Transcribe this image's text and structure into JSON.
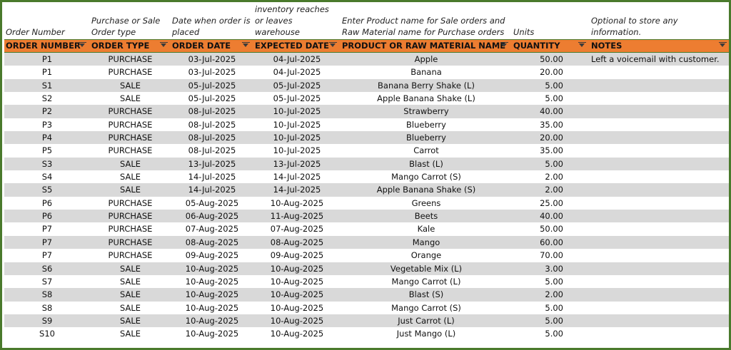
{
  "column_notes": {
    "order_number": "Order Number",
    "order_type": "Purchase or Sale Order type",
    "order_date": "Date when order is placed",
    "expected_date": "Date when inventory reaches or leaves warehouse",
    "product": "Enter Product name for Sale orders and Raw Material name for Purchase orders",
    "quantity": "Units",
    "notes": "Optional to store any information."
  },
  "headers": {
    "order_number": "ORDER NUMBER",
    "order_type": "ORDER TYPE",
    "order_date": "ORDER DATE",
    "expected_date": "EXPECTED DATE",
    "product": "PRODUCT OR RAW MATERIAL NAME",
    "quantity": "QUANTITY",
    "notes": "NOTES"
  },
  "rows": [
    {
      "order_number": "P1",
      "order_type": "PURCHASE",
      "order_date": "03-Jul-2025",
      "expected_date": "04-Jul-2025",
      "product": "Apple",
      "quantity": "50.00",
      "notes": "Left a voicemail with customer."
    },
    {
      "order_number": "P1",
      "order_type": "PURCHASE",
      "order_date": "03-Jul-2025",
      "expected_date": "04-Jul-2025",
      "product": "Banana",
      "quantity": "20.00",
      "notes": ""
    },
    {
      "order_number": "S1",
      "order_type": "SALE",
      "order_date": "05-Jul-2025",
      "expected_date": "05-Jul-2025",
      "product": "Banana Berry Shake (L)",
      "quantity": "5.00",
      "notes": ""
    },
    {
      "order_number": "S2",
      "order_type": "SALE",
      "order_date": "05-Jul-2025",
      "expected_date": "05-Jul-2025",
      "product": "Apple Banana Shake (L)",
      "quantity": "5.00",
      "notes": ""
    },
    {
      "order_number": "P2",
      "order_type": "PURCHASE",
      "order_date": "08-Jul-2025",
      "expected_date": "10-Jul-2025",
      "product": "Strawberry",
      "quantity": "40.00",
      "notes": ""
    },
    {
      "order_number": "P3",
      "order_type": "PURCHASE",
      "order_date": "08-Jul-2025",
      "expected_date": "10-Jul-2025",
      "product": "Blueberry",
      "quantity": "35.00",
      "notes": ""
    },
    {
      "order_number": "P4",
      "order_type": "PURCHASE",
      "order_date": "08-Jul-2025",
      "expected_date": "10-Jul-2025",
      "product": "Blueberry",
      "quantity": "20.00",
      "notes": ""
    },
    {
      "order_number": "P5",
      "order_type": "PURCHASE",
      "order_date": "08-Jul-2025",
      "expected_date": "10-Jul-2025",
      "product": "Carrot",
      "quantity": "35.00",
      "notes": ""
    },
    {
      "order_number": "S3",
      "order_type": "SALE",
      "order_date": "13-Jul-2025",
      "expected_date": "13-Jul-2025",
      "product": "Blast (L)",
      "quantity": "5.00",
      "notes": ""
    },
    {
      "order_number": "S4",
      "order_type": "SALE",
      "order_date": "14-Jul-2025",
      "expected_date": "14-Jul-2025",
      "product": "Mango Carrot (S)",
      "quantity": "2.00",
      "notes": ""
    },
    {
      "order_number": "S5",
      "order_type": "SALE",
      "order_date": "14-Jul-2025",
      "expected_date": "14-Jul-2025",
      "product": "Apple Banana Shake (S)",
      "quantity": "2.00",
      "notes": ""
    },
    {
      "order_number": "P6",
      "order_type": "PURCHASE",
      "order_date": "05-Aug-2025",
      "expected_date": "10-Aug-2025",
      "product": "Greens",
      "quantity": "25.00",
      "notes": ""
    },
    {
      "order_number": "P6",
      "order_type": "PURCHASE",
      "order_date": "06-Aug-2025",
      "expected_date": "11-Aug-2025",
      "product": "Beets",
      "quantity": "40.00",
      "notes": ""
    },
    {
      "order_number": "P7",
      "order_type": "PURCHASE",
      "order_date": "07-Aug-2025",
      "expected_date": "07-Aug-2025",
      "product": "Kale",
      "quantity": "50.00",
      "notes": ""
    },
    {
      "order_number": "P7",
      "order_type": "PURCHASE",
      "order_date": "08-Aug-2025",
      "expected_date": "08-Aug-2025",
      "product": "Mango",
      "quantity": "60.00",
      "notes": ""
    },
    {
      "order_number": "P7",
      "order_type": "PURCHASE",
      "order_date": "09-Aug-2025",
      "expected_date": "09-Aug-2025",
      "product": "Orange",
      "quantity": "70.00",
      "notes": ""
    },
    {
      "order_number": "S6",
      "order_type": "SALE",
      "order_date": "10-Aug-2025",
      "expected_date": "10-Aug-2025",
      "product": "Vegetable Mix (L)",
      "quantity": "3.00",
      "notes": ""
    },
    {
      "order_number": "S7",
      "order_type": "SALE",
      "order_date": "10-Aug-2025",
      "expected_date": "10-Aug-2025",
      "product": "Mango Carrot (L)",
      "quantity": "5.00",
      "notes": ""
    },
    {
      "order_number": "S8",
      "order_type": "SALE",
      "order_date": "10-Aug-2025",
      "expected_date": "10-Aug-2025",
      "product": "Blast (S)",
      "quantity": "2.00",
      "notes": ""
    },
    {
      "order_number": "S8",
      "order_type": "SALE",
      "order_date": "10-Aug-2025",
      "expected_date": "10-Aug-2025",
      "product": "Mango Carrot (S)",
      "quantity": "5.00",
      "notes": ""
    },
    {
      "order_number": "S9",
      "order_type": "SALE",
      "order_date": "10-Aug-2025",
      "expected_date": "10-Aug-2025",
      "product": "Just Carrot (L)",
      "quantity": "5.00",
      "notes": ""
    },
    {
      "order_number": "S10",
      "order_type": "SALE",
      "order_date": "10-Aug-2025",
      "expected_date": "10-Aug-2025",
      "product": "Just Mango (L)",
      "quantity": "5.00",
      "notes": ""
    }
  ],
  "colors": {
    "header_bg": "#ed7d31",
    "band_row": "#d9d9d9",
    "frame_border": "#4a7a2c"
  },
  "icons": {
    "filter": "filter-dropdown-icon"
  }
}
